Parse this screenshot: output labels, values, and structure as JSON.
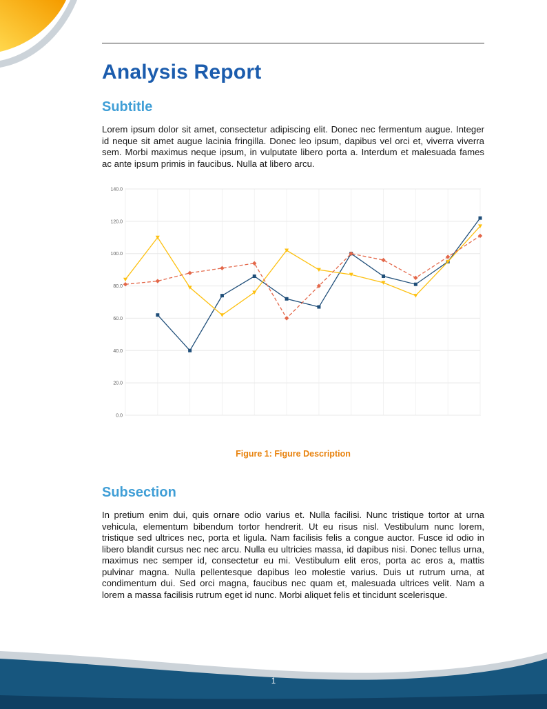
{
  "page": {
    "title": "Analysis Report",
    "page_number": "1"
  },
  "sections": [
    {
      "heading": "Subtitle",
      "body": "Lorem ipsum dolor sit amet, consectetur adipiscing elit. Donec nec fermentum augue. Integer id neque sit amet augue lacinia fringilla. Donec leo ipsum, dapibus vel orci et, viverra viverra sem. Morbi maximus neque ipsum, in vulputate libero porta a. Interdum et malesuada fames ac ante ipsum primis in faucibus. Nulla at libero arcu."
    },
    {
      "heading": "Subsection",
      "body": "In pretium enim dui, quis ornare odio varius et. Nulla facilisi. Nunc tristique tortor at urna vehicula, elementum bibendum tortor hendrerit. Ut eu risus nisl. Vestibulum nunc lorem, tristique sed ultrices nec, porta et ligula. Nam facilisis felis a congue auctor. Fusce id odio in libero blandit cursus nec nec arcu. Nulla eu ultricies massa, id dapibus nisi. Donec tellus urna, maximus nec semper id, consectetur eu mi. Vestibulum elit eros, porta ac eros a, mattis pulvinar magna. Nulla pellentesque dapibus leo molestie varius. Duis ut rutrum urna, at condimentum dui. Sed orci magna, faucibus nec quam et, malesuada ultrices velit. Nam a lorem a massa facilisis rutrum eget id nunc. Morbi aliquet felis et tincidunt scelerisque."
    }
  ],
  "figure": {
    "caption_label": "Figure 1:",
    "caption_text": "Figure Description"
  },
  "colors": {
    "title_blue": "#1b5cad",
    "heading_blue": "#3f9ed6",
    "caption_orange": "#e8820d",
    "footer_blue": "#17567e",
    "footer_navy": "#0f3f62",
    "footer_gray": "#ccd3d9",
    "swoosh_orange": "#f59d00",
    "swoosh_yellow": "#ffd84d"
  },
  "chart_data": {
    "type": "line",
    "title": "",
    "xlabel": "",
    "ylabel": "",
    "x": [
      1,
      2,
      3,
      4,
      5,
      6,
      7,
      8,
      9,
      10,
      11,
      12
    ],
    "ylim": [
      0,
      140
    ],
    "ytick": 20,
    "ydecimals": 1,
    "grid": true,
    "legend_position": "none",
    "series": [
      {
        "name": "series-blue",
        "color": "#1f4e79",
        "marker": "square",
        "dash": "solid",
        "values": [
          null,
          62,
          40,
          74,
          86,
          72,
          67,
          100,
          86,
          81,
          95,
          122
        ]
      },
      {
        "name": "series-yellow",
        "color": "#fdc010",
        "marker": "triangle",
        "dash": "solid",
        "values": [
          84,
          110,
          79,
          62,
          76,
          102,
          90,
          87,
          82,
          74,
          95,
          117
        ]
      },
      {
        "name": "series-red-dashed",
        "color": "#e36749",
        "marker": "diamond",
        "dash": "dashed",
        "values": [
          81,
          83,
          88,
          91,
          94,
          60,
          80,
          100,
          96,
          85,
          98,
          111
        ]
      }
    ]
  }
}
